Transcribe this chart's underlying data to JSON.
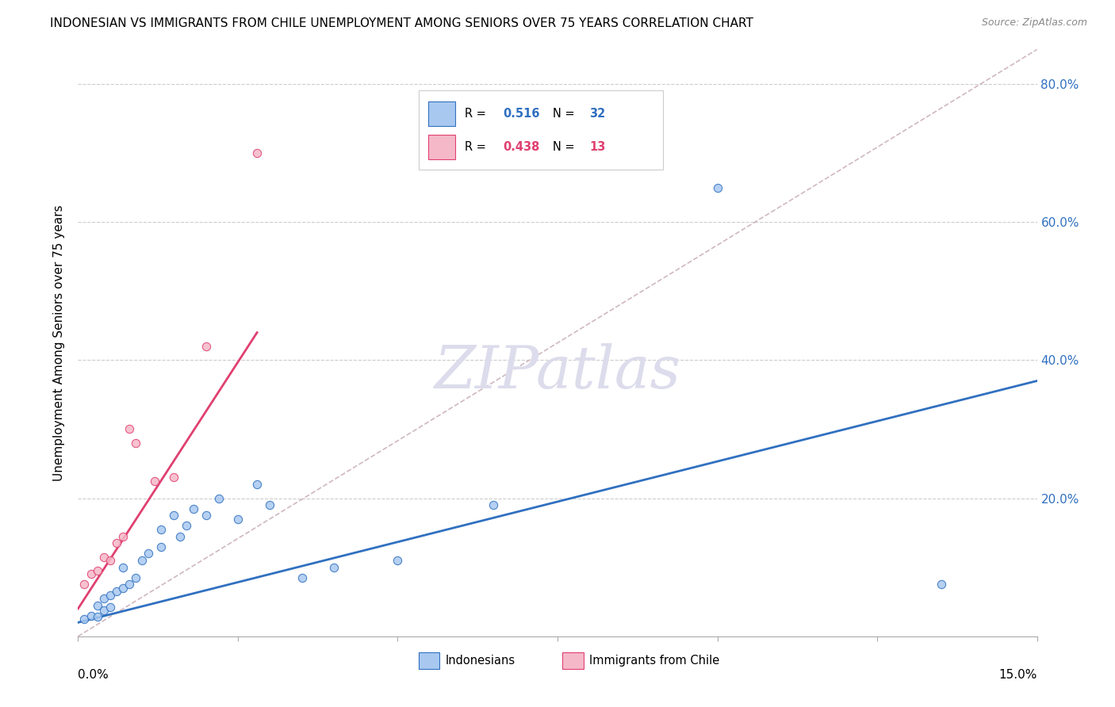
{
  "title": "INDONESIAN VS IMMIGRANTS FROM CHILE UNEMPLOYMENT AMONG SENIORS OVER 75 YEARS CORRELATION CHART",
  "source": "Source: ZipAtlas.com",
  "ylabel": "Unemployment Among Seniors over 75 years",
  "xlim": [
    0.0,
    0.15
  ],
  "ylim": [
    0.0,
    0.85
  ],
  "ytick_vals": [
    0.0,
    0.2,
    0.4,
    0.6,
    0.8
  ],
  "ytick_labels": [
    "",
    "20.0%",
    "40.0%",
    "60.0%",
    "80.0%"
  ],
  "xtick_vals": [
    0.0,
    0.025,
    0.05,
    0.075,
    0.1,
    0.125,
    0.15
  ],
  "legend_r_blue": "0.516",
  "legend_n_blue": "32",
  "legend_r_pink": "0.438",
  "legend_n_pink": "13",
  "blue_fill": "#A8C8F0",
  "pink_fill": "#F5B8C8",
  "line_blue": "#3070C0",
  "line_pink": "#E04070",
  "diagonal_color": "#D0B8C0",
  "watermark_color": "#DCDCEC",
  "indonesian_x": [
    0.001,
    0.002,
    0.003,
    0.003,
    0.004,
    0.004,
    0.005,
    0.005,
    0.006,
    0.007,
    0.007,
    0.008,
    0.009,
    0.01,
    0.011,
    0.013,
    0.013,
    0.015,
    0.016,
    0.017,
    0.018,
    0.02,
    0.022,
    0.025,
    0.028,
    0.03,
    0.035,
    0.04,
    0.05,
    0.065,
    0.1,
    0.135
  ],
  "indonesian_y": [
    0.025,
    0.03,
    0.028,
    0.045,
    0.038,
    0.055,
    0.042,
    0.06,
    0.065,
    0.07,
    0.1,
    0.075,
    0.085,
    0.11,
    0.12,
    0.13,
    0.155,
    0.175,
    0.145,
    0.16,
    0.185,
    0.175,
    0.2,
    0.17,
    0.22,
    0.19,
    0.085,
    0.1,
    0.11,
    0.19,
    0.65,
    0.075
  ],
  "chile_x": [
    0.001,
    0.002,
    0.003,
    0.004,
    0.005,
    0.006,
    0.007,
    0.008,
    0.009,
    0.012,
    0.015,
    0.02,
    0.028
  ],
  "chile_y": [
    0.075,
    0.09,
    0.095,
    0.115,
    0.11,
    0.135,
    0.145,
    0.3,
    0.28,
    0.225,
    0.23,
    0.42,
    0.7
  ],
  "blue_line_x": [
    0.0,
    0.15
  ],
  "blue_line_y": [
    0.02,
    0.37
  ],
  "pink_line_x": [
    0.0,
    0.028
  ],
  "pink_line_y": [
    0.04,
    0.44
  ],
  "diag_line_x": [
    0.0,
    0.15
  ],
  "diag_line_y": [
    0.0,
    0.85
  ],
  "grid_color": "#CCCCCC",
  "grid_linestyle": "--",
  "spine_color": "#AAAAAA"
}
